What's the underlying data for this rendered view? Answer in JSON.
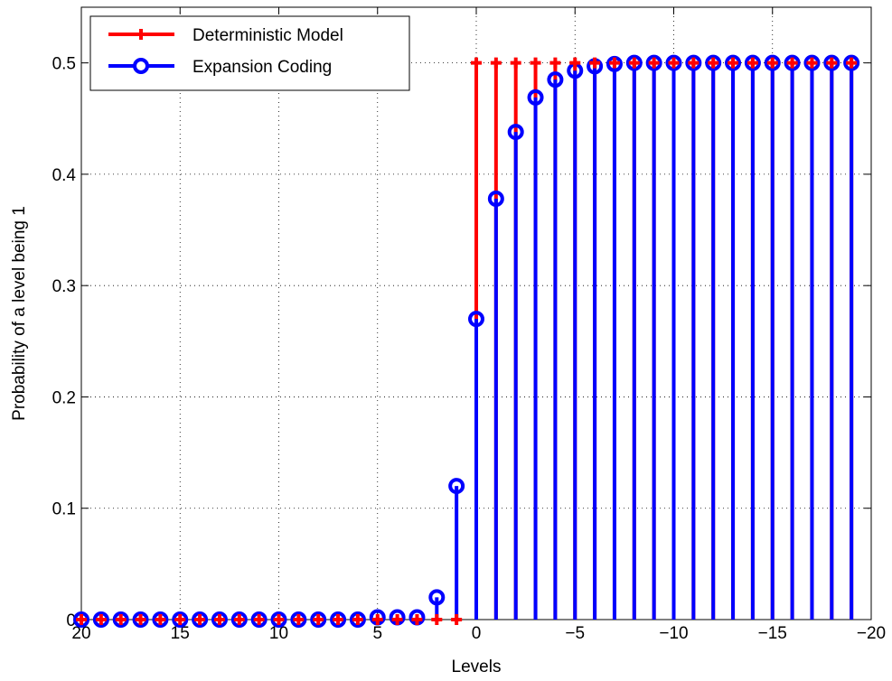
{
  "chart_data": {
    "type": "stem",
    "xlabel": "Levels",
    "ylabel": "Probability of a level being 1",
    "x": [
      20,
      19,
      18,
      17,
      16,
      15,
      14,
      13,
      12,
      11,
      10,
      9,
      8,
      7,
      6,
      5,
      4,
      3,
      2,
      1,
      0,
      -1,
      -2,
      -3,
      -4,
      -5,
      -6,
      -7,
      -8,
      -9,
      -10,
      -11,
      -12,
      -13,
      -14,
      -15,
      -16,
      -17,
      -18,
      -19
    ],
    "series": [
      {
        "name": "Deterministic Model",
        "color": "#ff0000",
        "marker": "plus",
        "values": [
          0,
          0,
          0,
          0,
          0,
          0,
          0,
          0,
          0,
          0,
          0,
          0,
          0,
          0,
          0,
          0,
          0,
          0,
          0,
          0,
          0.5,
          0.5,
          0.5,
          0.5,
          0.5,
          0.5,
          0.5,
          0.5,
          0.5,
          0.5,
          0.5,
          0.5,
          0.5,
          0.5,
          0.5,
          0.5,
          0.5,
          0.5,
          0.5,
          0.5
        ]
      },
      {
        "name": "Expansion Coding",
        "color": "#0000ff",
        "marker": "circle",
        "values": [
          0,
          0,
          0,
          0,
          0,
          0,
          0,
          0,
          0,
          0,
          0,
          0,
          0,
          0,
          0,
          0.002,
          0.002,
          0.002,
          0.02,
          0.12,
          0.27,
          0.378,
          0.438,
          0.469,
          0.485,
          0.493,
          0.497,
          0.499,
          0.5,
          0.5,
          0.5,
          0.5,
          0.5,
          0.5,
          0.5,
          0.5,
          0.5,
          0.5,
          0.5,
          0.5
        ]
      }
    ],
    "xlim": [
      20,
      -20
    ],
    "xticks": [
      20,
      15,
      10,
      5,
      0,
      {
        "value": -5,
        "label": "−5"
      },
      {
        "value": -10,
        "label": "−10"
      },
      {
        "value": -15,
        "label": "−15"
      },
      {
        "value": -20,
        "label": "−20"
      }
    ],
    "ylim": [
      0,
      0.55
    ],
    "yticks": [
      0,
      0.1,
      0.2,
      0.3,
      0.4,
      0.5
    ],
    "grid": true,
    "legend": "upper-left"
  }
}
